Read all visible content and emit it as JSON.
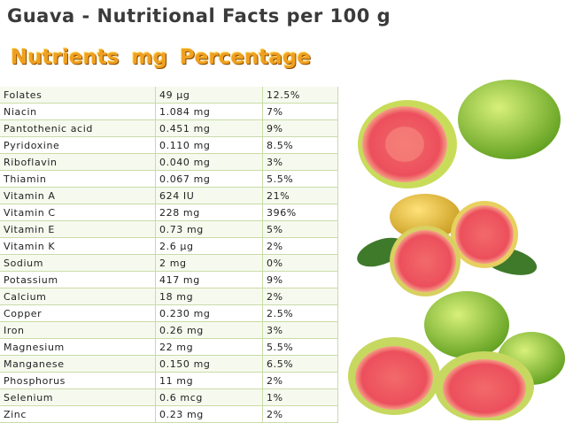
{
  "title": "Guava - Nutritional Facts per 100 g",
  "table": {
    "columns": [
      "Nutrients",
      "mg",
      "Percentage"
    ],
    "rows": [
      [
        "Folates",
        "49 µg",
        "12.5%"
      ],
      [
        "Niacin",
        "1.084 mg",
        "7%"
      ],
      [
        "Pantothenic acid",
        "0.451 mg",
        "9%"
      ],
      [
        "Pyridoxine",
        "0.110 mg",
        "8.5%"
      ],
      [
        "Riboflavin",
        "0.040 mg",
        "3%"
      ],
      [
        "Thiamin",
        "0.067 mg",
        "5.5%"
      ],
      [
        "Vitamin A",
        "624 IU",
        "21%"
      ],
      [
        "Vitamin C",
        "228 mg",
        "396%"
      ],
      [
        "Vitamin E",
        "0.73 mg",
        "5%"
      ],
      [
        "Vitamin K",
        "2.6 µg",
        "2%"
      ],
      [
        "Sodium",
        "2 mg",
        "0%"
      ],
      [
        "Potassium",
        "417 mg",
        "9%"
      ],
      [
        "Calcium",
        "18 mg",
        "2%"
      ],
      [
        "Copper",
        "0.230 mg",
        "2.5%"
      ],
      [
        "Iron",
        "0.26 mg",
        "3%"
      ],
      [
        "Magnesium",
        "22 mg",
        "5.5%"
      ],
      [
        "Manganese",
        "0.150 mg",
        "6.5%"
      ],
      [
        "Phosphorus",
        "11 mg",
        "2%"
      ],
      [
        "Selenium",
        "0.6 mcg",
        "1%"
      ],
      [
        "Zinc",
        "0.23 mg",
        "2%"
      ]
    ]
  }
}
